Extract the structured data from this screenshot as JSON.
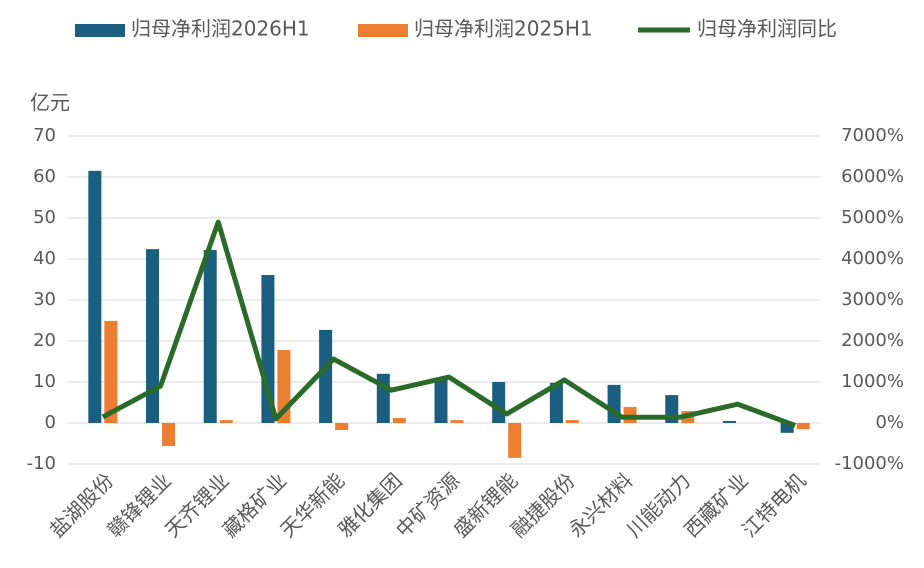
{
  "chart_data": {
    "type": "bar-line",
    "y_unit": "亿元",
    "categories": [
      "盐湖股份",
      "赣锋锂业",
      "天齐锂业",
      "藏格矿业",
      "天华新能",
      "雅化集团",
      "中矿资源",
      "盛新锂能",
      "融捷股份",
      "永兴材料",
      "川能动力",
      "西藏矿业",
      "江特电机"
    ],
    "series": [
      {
        "name": "归母净利润2026H1",
        "type": "bar",
        "color": "#1a5e80",
        "values": [
          61.5,
          42.4,
          42.2,
          36.1,
          22.7,
          12.0,
          11.0,
          10.0,
          9.8,
          9.3,
          6.8,
          0.5,
          -2.4
        ]
      },
      {
        "name": "归母净利润2025H1",
        "type": "bar",
        "color": "#ed7d31",
        "values": [
          24.9,
          -5.6,
          0.7,
          17.8,
          -1.7,
          1.2,
          0.7,
          -8.5,
          0.7,
          3.9,
          2.9,
          null,
          -1.5
        ]
      },
      {
        "name": "归母净利润同比",
        "type": "line",
        "axis": "y2",
        "color": "#2a6b2a",
        "values": [
          147,
          900,
          4900,
          100,
          1560,
          800,
          1120,
          220,
          1050,
          140,
          140,
          460,
          -60
        ]
      }
    ],
    "ylim": [
      -10,
      70
    ],
    "yticks": [
      -10,
      0,
      10,
      20,
      30,
      40,
      50,
      60,
      70
    ],
    "y2lim": [
      -1000,
      7000
    ],
    "y2ticks": [
      {
        "value": -1000,
        "label": "-1000%"
      },
      {
        "value": 0,
        "label": "0%"
      },
      {
        "value": 1000,
        "label": "1000%"
      },
      {
        "value": 2000,
        "label": "2000%"
      },
      {
        "value": 3000,
        "label": "3000%"
      },
      {
        "value": 4000,
        "label": "4000%"
      },
      {
        "value": 5000,
        "label": "5000%"
      },
      {
        "value": 6000,
        "label": "6000%"
      },
      {
        "value": 7000,
        "label": "7000%"
      }
    ],
    "grid": true,
    "legend": "top"
  }
}
